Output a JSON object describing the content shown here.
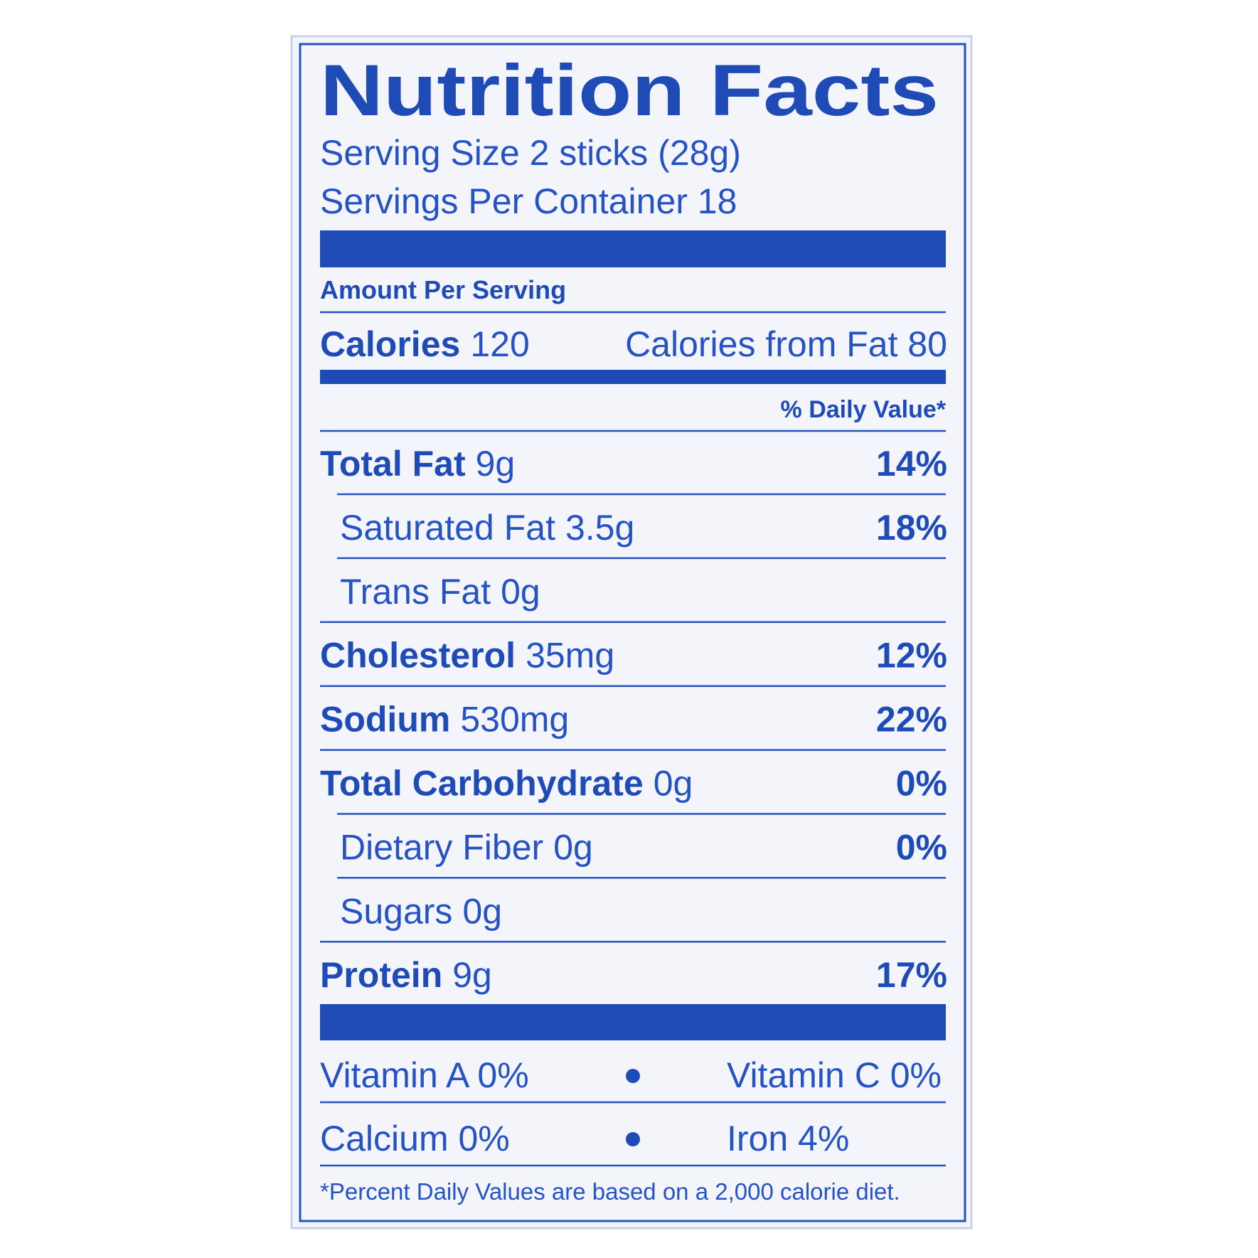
{
  "title": "Nutrition Facts",
  "serving_size": "Serving Size 2 sticks (28g)",
  "servings_per_container": "Servings Per Container 18",
  "amount_per_serving": "Amount Per Serving",
  "calories": {
    "label": "Calories",
    "value": "120"
  },
  "calories_from_fat": "Calories from Fat 80",
  "daily_value_header": "% Daily Value*",
  "nutrients": [
    {
      "name": "Total Fat",
      "amount": "9g",
      "dv": "14%"
    },
    {
      "name": "Saturated Fat",
      "amount": "3.5g",
      "dv": "18%"
    },
    {
      "name": "Trans Fat",
      "amount": "0g"
    },
    {
      "name": "Cholesterol",
      "amount": "35mg",
      "dv": "12%"
    },
    {
      "name": "Sodium",
      "amount": "530mg",
      "dv": "22%"
    },
    {
      "name": "Total Carbohydrate",
      "amount": "0g",
      "dv": "0%"
    },
    {
      "name": "Dietary Fiber",
      "amount": "0g",
      "dv": "0%"
    },
    {
      "name": "Sugars",
      "amount": "0g"
    },
    {
      "name": "Protein",
      "amount": "9g",
      "dv": "17%"
    }
  ],
  "vitamins": [
    [
      "Vitamin A 0%",
      "Vitamin C 0%"
    ],
    [
      "Calcium 0%",
      "Iron 4%"
    ]
  ],
  "footnote": "*Percent Daily Values are based on a 2,000 calorie diet."
}
